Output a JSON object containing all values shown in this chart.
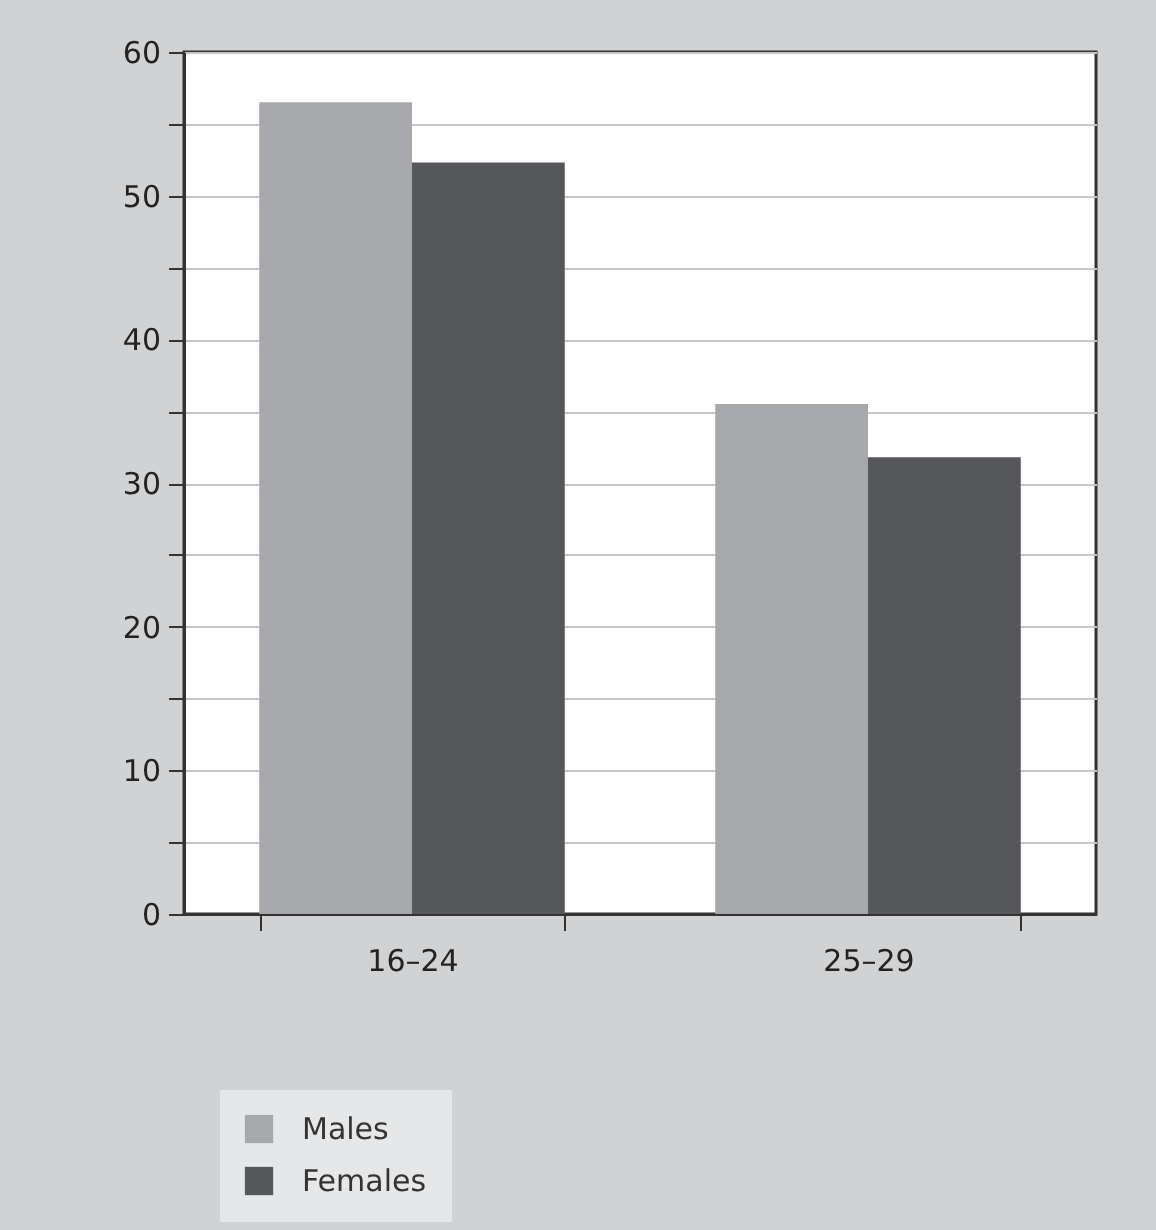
{
  "chart_data": {
    "type": "bar",
    "categories": [
      "16–24",
      "25–29"
    ],
    "series": [
      {
        "name": "Males",
        "color": "#a7a8ac",
        "values": [
          56.5,
          35.5
        ]
      },
      {
        "name": "Females",
        "color": "#56575a",
        "values": [
          52.3,
          31.8
        ]
      }
    ],
    "ylim": [
      0,
      60
    ],
    "yticks": [
      0,
      {
        "value": 5,
        "label": null
      },
      10,
      {
        "value": 15,
        "label": null
      },
      20,
      {
        "value": 25,
        "label": null
      },
      30,
      {
        "value": 35,
        "label": null
      },
      40,
      {
        "value": 45,
        "label": null
      },
      50,
      {
        "value": 55,
        "label": null
      },
      60
    ],
    "grid": true,
    "legend": "bottom left"
  }
}
